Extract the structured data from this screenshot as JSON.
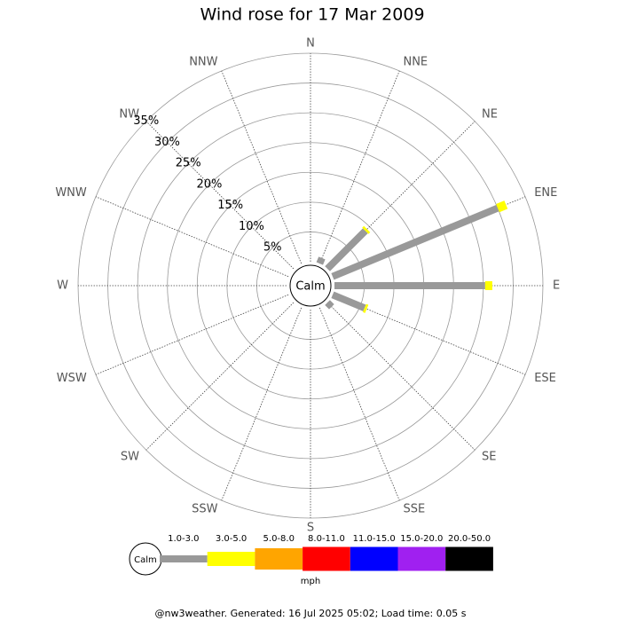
{
  "chart_data": {
    "type": "windrose",
    "title": "Wind rose for 17 Mar 2009",
    "directions": [
      "N",
      "NNE",
      "NE",
      "ENE",
      "E",
      "ESE",
      "SE",
      "SSE",
      "S",
      "SSW",
      "SW",
      "WSW",
      "W",
      "WNW",
      "NW",
      "NNW"
    ],
    "series": [
      {
        "name": "1.0-3.0",
        "color": "#999999",
        "values": [
          0,
          1.0,
          9.0,
          30.0,
          25.3,
          5.8,
          1.0,
          0,
          0,
          0,
          0,
          0,
          0,
          0,
          0,
          0
        ]
      },
      {
        "name": "3.0-5.0",
        "color": "#ffff00",
        "values": [
          0,
          0,
          0.4,
          1.5,
          1.2,
          0.4,
          0,
          0,
          0,
          0,
          0,
          0,
          0,
          0,
          0,
          0
        ]
      },
      {
        "name": "5.0-8.0",
        "color": "#ffa500",
        "values": [
          0,
          0,
          0,
          0,
          0,
          0,
          0,
          0,
          0,
          0,
          0,
          0,
          0,
          0,
          0,
          0
        ]
      },
      {
        "name": "8.0-11.0",
        "color": "#ff0000",
        "values": [
          0,
          0,
          0,
          0,
          0,
          0,
          0,
          0,
          0,
          0,
          0,
          0,
          0,
          0,
          0,
          0
        ]
      },
      {
        "name": "11.0-15.0",
        "color": "#0000ff",
        "values": [
          0,
          0,
          0,
          0,
          0,
          0,
          0,
          0,
          0,
          0,
          0,
          0,
          0,
          0,
          0,
          0
        ]
      },
      {
        "name": "15.0-20.0",
        "color": "#a020f0",
        "values": [
          0,
          0,
          0,
          0,
          0,
          0,
          0,
          0,
          0,
          0,
          0,
          0,
          0,
          0,
          0,
          0
        ]
      },
      {
        "name": "20.0-50.0",
        "color": "#000000",
        "values": [
          0,
          0,
          0,
          0,
          0,
          0,
          0,
          0,
          0,
          0,
          0,
          0,
          0,
          0,
          0,
          0
        ]
      }
    ],
    "ylim": [
      0,
      35
    ],
    "yticks": [
      {
        "value": 5,
        "label": "5%"
      },
      {
        "value": 10,
        "label": "10%"
      },
      {
        "value": 15,
        "label": "15%"
      },
      {
        "value": 20,
        "label": "20%"
      },
      {
        "value": 25,
        "label": "25%"
      },
      {
        "value": 30,
        "label": "30%"
      },
      {
        "value": 35,
        "label": "35%"
      }
    ],
    "calm_label": "Calm",
    "unit": "mph",
    "footer": "@nw3weather. Generated: 16 Jul 2025 05:02; Load time: 0.05 s"
  }
}
